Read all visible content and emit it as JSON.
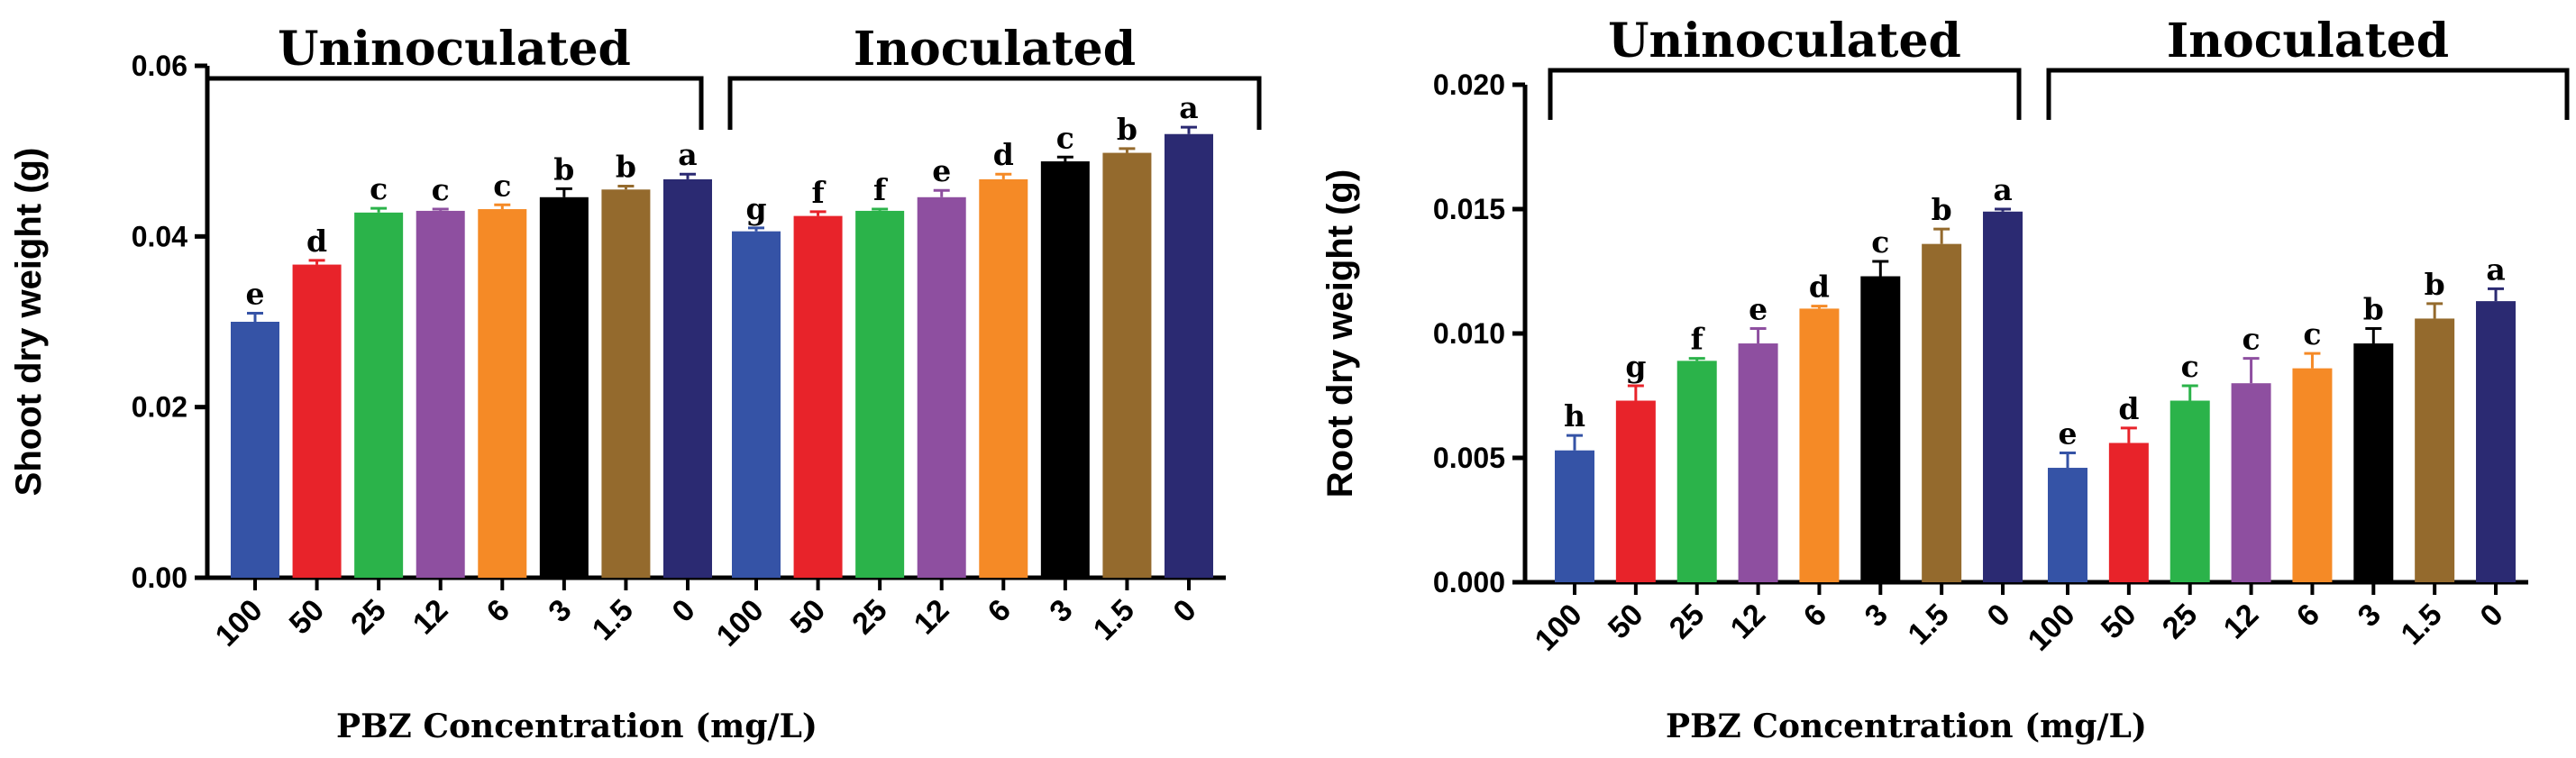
{
  "figure": {
    "xlabel": "PBZ Concentration (mg/L)",
    "colors": [
      "#3553a6",
      "#e8232a",
      "#2bb34a",
      "#8e4fa0",
      "#f58a26",
      "#000000",
      "#946a2d",
      "#2b2a72"
    ]
  },
  "chart_data": [
    {
      "type": "bar",
      "ylabel": "Shoot dry weight (g)",
      "ylim": [
        0,
        0.06
      ],
      "yticks": [
        "0.00",
        "0.02",
        "0.04",
        "0.06"
      ],
      "categories": [
        "100",
        "50",
        "25",
        "12",
        "6",
        "3",
        "1.5",
        "0"
      ],
      "groups": [
        {
          "name": "Uninoculated",
          "values": [
            0.03,
            0.0367,
            0.0428,
            0.043,
            0.0432,
            0.0446,
            0.0455,
            0.0467
          ],
          "errors": [
            0.001,
            0.0005,
            0.0005,
            0.0002,
            0.0005,
            0.001,
            0.0004,
            0.0006
          ],
          "letters": [
            "e",
            "d",
            "c",
            "c",
            "c",
            "b",
            "b",
            "a"
          ]
        },
        {
          "name": "Inoculated",
          "values": [
            0.0406,
            0.0424,
            0.043,
            0.0446,
            0.0467,
            0.0488,
            0.0498,
            0.052
          ],
          "errors": [
            0.0004,
            0.0005,
            0.0002,
            0.0008,
            0.0006,
            0.0005,
            0.0005,
            0.0008
          ],
          "letters": [
            "g",
            "f",
            "f",
            "e",
            "d",
            "c",
            "b",
            "a"
          ]
        }
      ]
    },
    {
      "type": "bar",
      "ylabel": "Root dry weight (g)",
      "ylim": [
        0,
        0.02
      ],
      "yticks": [
        "0.000",
        "0.005",
        "0.010",
        "0.015",
        "0.020"
      ],
      "categories": [
        "100",
        "50",
        "25",
        "12",
        "6",
        "3",
        "1.5",
        "0"
      ],
      "groups": [
        {
          "name": "Uninoculated",
          "values": [
            0.0053,
            0.0073,
            0.0089,
            0.0096,
            0.011,
            0.0123,
            0.0136,
            0.0149
          ],
          "errors": [
            0.0006,
            0.0006,
            0.0001,
            0.0006,
            0.0001,
            0.0006,
            0.0006,
            0.0001
          ],
          "letters": [
            "h",
            "g",
            "f",
            "e",
            "d",
            "c",
            "b",
            "a"
          ]
        },
        {
          "name": "Inoculated",
          "values": [
            0.0046,
            0.0056,
            0.0073,
            0.008,
            0.0086,
            0.0096,
            0.0106,
            0.0113
          ],
          "errors": [
            0.0006,
            0.0006,
            0.0006,
            0.001,
            0.0006,
            0.0006,
            0.0006,
            0.0005
          ],
          "letters": [
            "e",
            "d",
            "c",
            "c",
            "c",
            "b",
            "b",
            "a"
          ]
        }
      ]
    }
  ]
}
